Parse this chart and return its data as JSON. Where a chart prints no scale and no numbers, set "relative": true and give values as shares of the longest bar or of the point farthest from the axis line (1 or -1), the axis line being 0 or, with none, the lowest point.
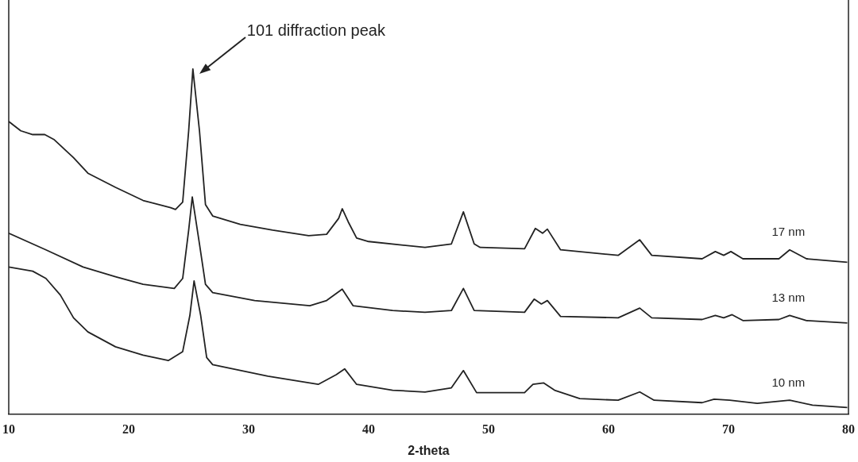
{
  "chart_data": {
    "type": "line",
    "relative": true,
    "xlabel": "2-theta",
    "xlim": [
      10,
      80
    ],
    "xticks": [
      10,
      20,
      30,
      40,
      50,
      60,
      70,
      80
    ],
    "grid": false,
    "legend": false,
    "marker": "none",
    "line_style": "solid",
    "annotations": [
      "101 diffraction peak"
    ],
    "series": [
      {
        "name": "17 nm",
        "color": "#222222",
        "x": [
          10,
          11,
          12,
          13,
          13.8,
          15.4,
          16.6,
          18.9,
          21.2,
          23.5,
          23.9,
          24.5,
          25.0,
          25.35,
          25.9,
          26.4,
          27.0,
          29.3,
          32,
          35,
          36.5,
          37.5,
          37.8,
          38.3,
          39,
          40,
          44.7,
          46.9,
          47.9,
          48.8,
          49.3,
          53.0,
          53.9,
          54.5,
          54.9,
          56.0,
          60.8,
          62.6,
          63.6,
          67.8,
          68.9,
          69.6,
          70.2,
          71.2,
          74.2,
          75.1,
          76.5,
          79.9
        ],
        "values": [
          0.848,
          0.821,
          0.81,
          0.81,
          0.795,
          0.743,
          0.698,
          0.657,
          0.619,
          0.598,
          0.593,
          0.614,
          0.821,
          1.0,
          0.821,
          0.607,
          0.574,
          0.55,
          0.533,
          0.517,
          0.521,
          0.567,
          0.595,
          0.557,
          0.51,
          0.5,
          0.483,
          0.493,
          0.586,
          0.493,
          0.483,
          0.479,
          0.538,
          0.524,
          0.536,
          0.476,
          0.46,
          0.505,
          0.46,
          0.45,
          0.471,
          0.46,
          0.471,
          0.45,
          0.45,
          0.476,
          0.45,
          0.44
        ]
      },
      {
        "name": "13 nm",
        "color": "#222222",
        "x": [
          10.0,
          13.1,
          16.2,
          18.9,
          21.2,
          23.8,
          24.5,
          25.0,
          25.3,
          25.9,
          26.4,
          27.0,
          30.5,
          35.1,
          36.5,
          37.8,
          38.7,
          42.0,
          44.7,
          46.9,
          47.9,
          48.8,
          53.0,
          53.8,
          54.4,
          54.9,
          56.0,
          60.8,
          62.6,
          63.6,
          67.8,
          68.9,
          69.6,
          70.3,
          71.2,
          74.2,
          75.1,
          76.5,
          79.9
        ],
        "values": [
          0.524,
          0.476,
          0.426,
          0.398,
          0.376,
          0.364,
          0.393,
          0.533,
          0.629,
          0.493,
          0.376,
          0.352,
          0.329,
          0.314,
          0.329,
          0.362,
          0.314,
          0.3,
          0.295,
          0.3,
          0.364,
          0.3,
          0.295,
          0.333,
          0.319,
          0.329,
          0.283,
          0.279,
          0.307,
          0.279,
          0.274,
          0.286,
          0.279,
          0.288,
          0.271,
          0.274,
          0.286,
          0.271,
          0.264
        ]
      },
      {
        "name": "10 nm",
        "color": "#222222",
        "x": [
          10,
          12.0,
          13.1,
          14.3,
          15.4,
          16.6,
          18.9,
          21.2,
          23.3,
          24.5,
          25.1,
          25.45,
          26.0,
          26.5,
          27.0,
          31.6,
          35.8,
          37.3,
          38.0,
          39.0,
          42,
          44.7,
          46.9,
          47.9,
          49.0,
          53.0,
          53.7,
          54.6,
          55.5,
          57.6,
          60.8,
          62.6,
          63.8,
          67.8,
          68.8,
          70.1,
          72.4,
          75.1,
          77.0,
          79.9
        ],
        "values": [
          0.426,
          0.414,
          0.393,
          0.345,
          0.279,
          0.238,
          0.195,
          0.171,
          0.155,
          0.181,
          0.286,
          0.386,
          0.286,
          0.164,
          0.143,
          0.11,
          0.086,
          0.114,
          0.131,
          0.086,
          0.069,
          0.064,
          0.076,
          0.126,
          0.062,
          0.062,
          0.086,
          0.09,
          0.069,
          0.045,
          0.04,
          0.064,
          0.04,
          0.033,
          0.043,
          0.04,
          0.031,
          0.04,
          0.026,
          0.019
        ]
      }
    ]
  }
}
